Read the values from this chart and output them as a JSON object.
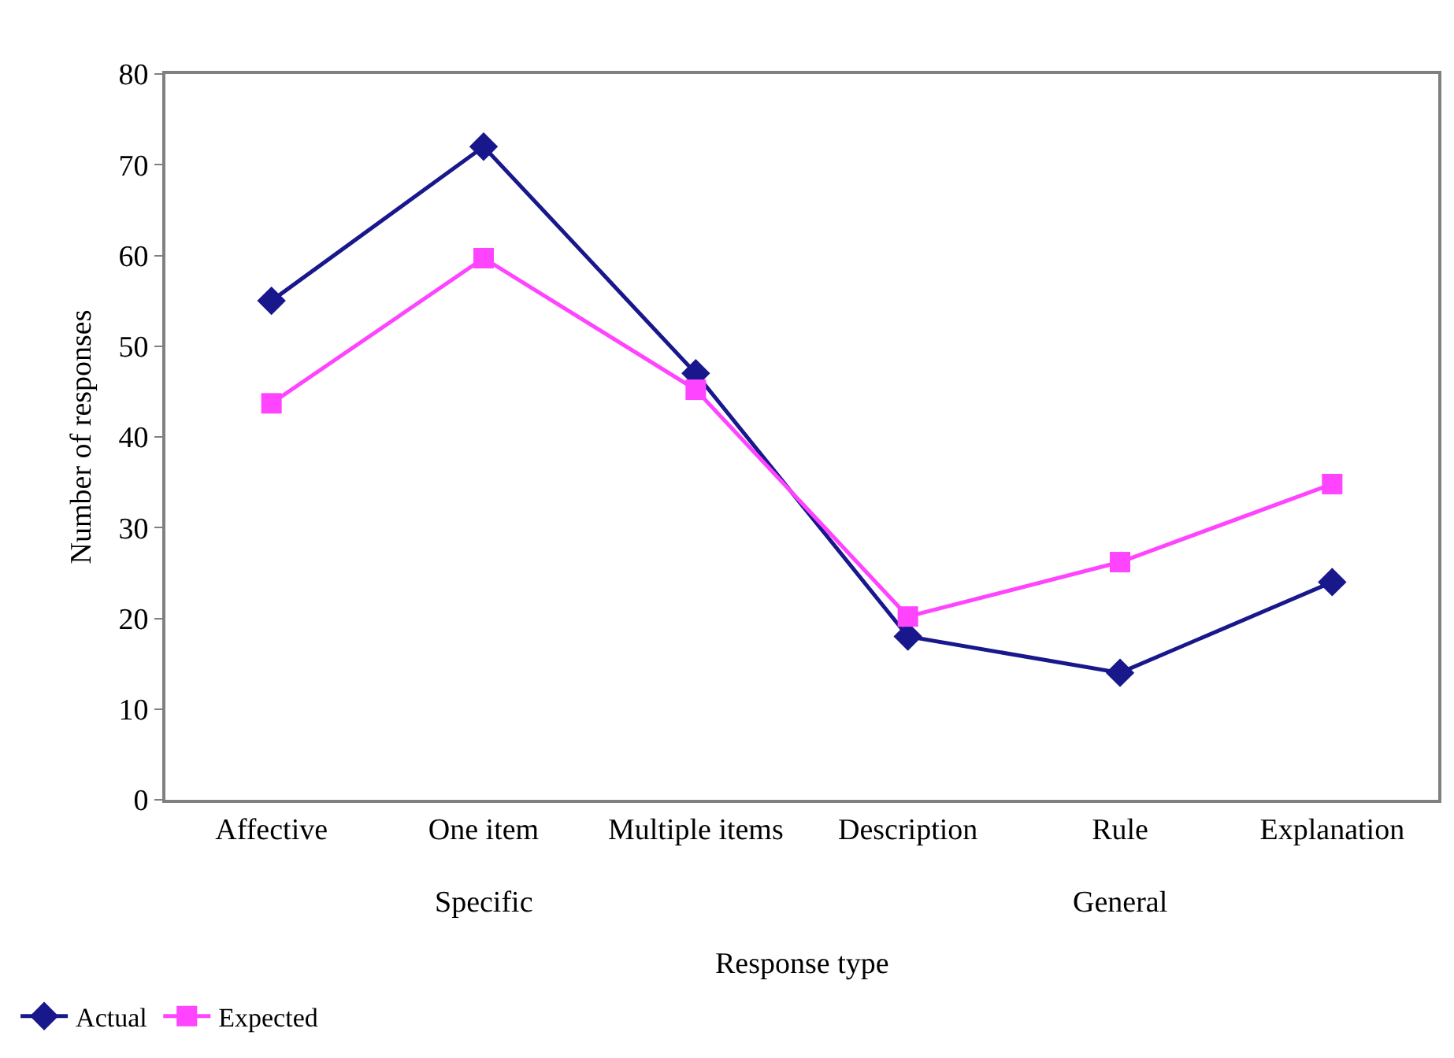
{
  "chart_data": {
    "type": "line",
    "xlabel": "Response type",
    "ylabel": "Number of responses",
    "categories": [
      "Affective",
      "One item",
      "Multiple items",
      "Description",
      "Rule",
      "Explanation"
    ],
    "series": [
      {
        "name": "Actual",
        "color": "#18188c",
        "marker": "diamond",
        "values": [
          55,
          72,
          47,
          18,
          14,
          24
        ]
      },
      {
        "name": "Expected",
        "color": "#ff44ff",
        "marker": "square",
        "values": [
          43.7,
          59.7,
          45.2,
          20.2,
          26.2,
          34.8
        ]
      }
    ],
    "ylim": [
      0,
      80
    ],
    "yticks": [
      0,
      10,
      20,
      30,
      40,
      50,
      60,
      70,
      80
    ],
    "annotations": [
      "Specific",
      "General"
    ],
    "legend": "bottom left",
    "line_style": "solid"
  }
}
